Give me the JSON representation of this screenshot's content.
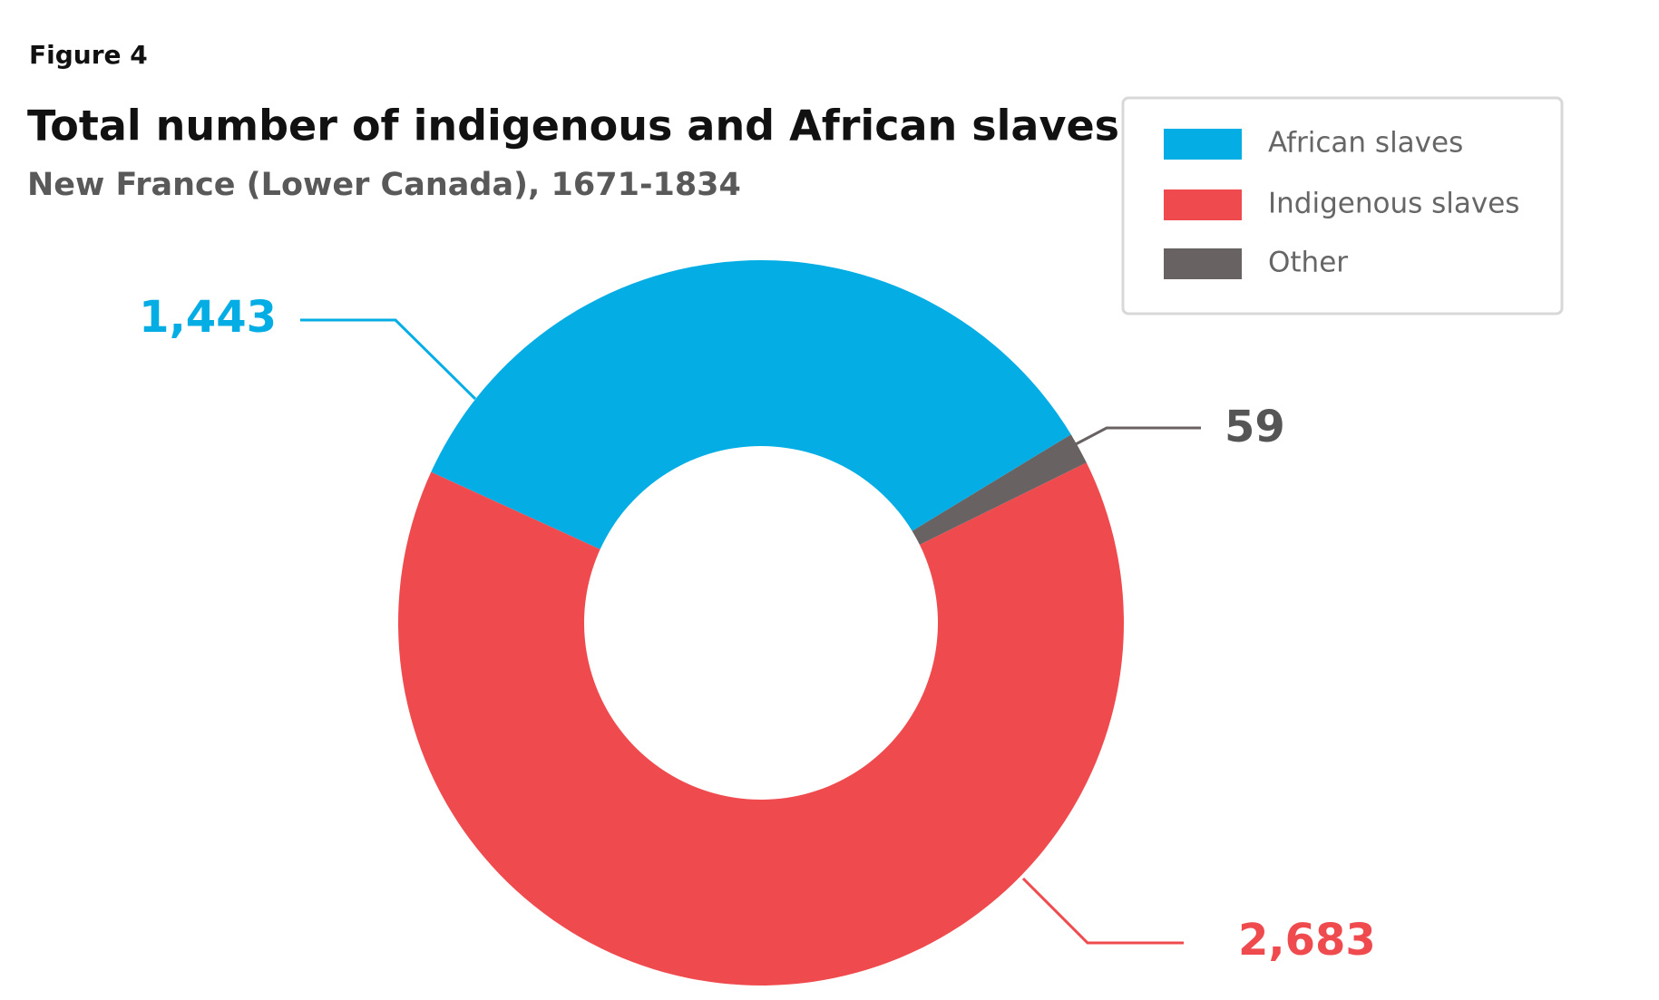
{
  "chart_data": {
    "type": "donut",
    "figure_label": "Figure 4",
    "title": "Total number of indigenous and African slaves",
    "subtitle": "New France (Lower Canada), 1671-1834",
    "categories": [
      "African slaves",
      "Indigenous slaves",
      "Other"
    ],
    "values": [
      1443,
      2683,
      59
    ],
    "value_labels": [
      "1,443",
      "2,683",
      "59"
    ],
    "colors": [
      "#05ade5",
      "#ef4b4f",
      "#686262"
    ],
    "legend": "top-right"
  }
}
